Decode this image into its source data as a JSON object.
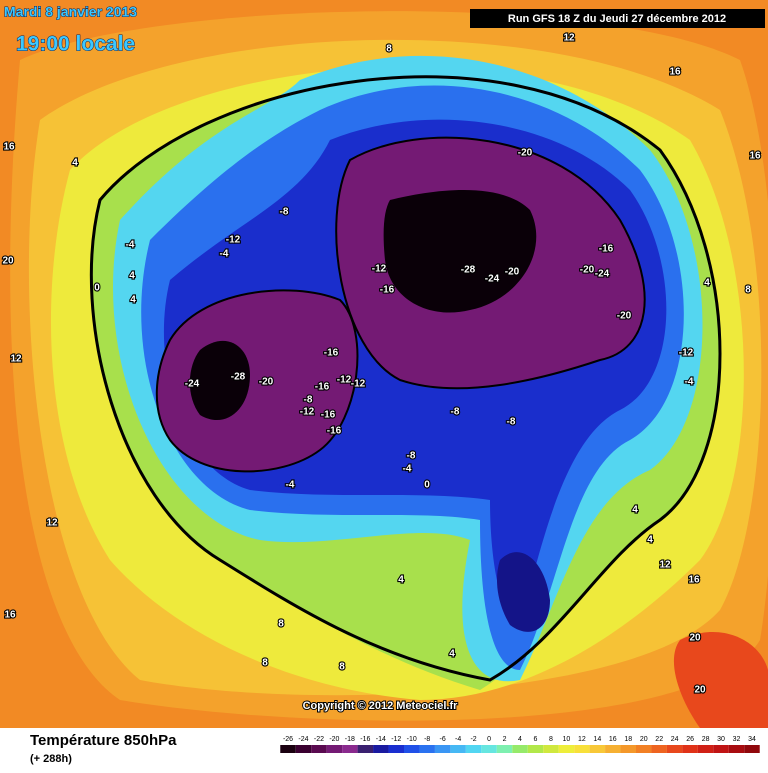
{
  "header": {
    "date": "Mardi 8 janvier 2013",
    "time": "19:00 locale",
    "run": "Run GFS 18 Z du Jeudi 27 décembre 2012"
  },
  "copyright": "Copyright © 2012 Meteociel.fr",
  "contour_labels": [
    -20,
    -16,
    -28,
    -24,
    -20,
    -20,
    -24,
    -20,
    -12,
    -16,
    -12,
    -4,
    -16,
    -24,
    -28,
    -20,
    -16,
    -12,
    -12,
    -8,
    -12,
    -16,
    -16,
    -8,
    -8,
    -8,
    -4,
    0,
    -4,
    -8,
    -12,
    -4,
    -4,
    0,
    4,
    4,
    4,
    16,
    20,
    12,
    12,
    16,
    8,
    8,
    8,
    4,
    4,
    8,
    12,
    16,
    16,
    4,
    8,
    4,
    4,
    12,
    16,
    20,
    20
  ],
  "legend": {
    "title": "Température 850hPa",
    "subtitle": "(+ 288h)",
    "ticks": [
      -26,
      -24,
      -22,
      -20,
      -18,
      -16,
      -14,
      -12,
      -10,
      -8,
      -6,
      -4,
      -2,
      0,
      2,
      4,
      6,
      8,
      10,
      12,
      14,
      16,
      18,
      20,
      22,
      24,
      26,
      28,
      30,
      32,
      34
    ],
    "colors": [
      "#1a0010",
      "#3a0030",
      "#5a0a50",
      "#741a74",
      "#8a2a8e",
      "#3a2070",
      "#1a1aa0",
      "#1a2ed0",
      "#2050e8",
      "#2a72f0",
      "#3a96f4",
      "#46b8f4",
      "#52d6f2",
      "#66e6e0",
      "#7ef0b0",
      "#96ea6a",
      "#b2e84a",
      "#d0e83e",
      "#eeee3a",
      "#f8e03a",
      "#f8c838",
      "#f6b032",
      "#f4982a",
      "#f28024",
      "#ee6420",
      "#e8481c",
      "#e03218",
      "#d02016",
      "#c01414",
      "#a80c10",
      "#90080c"
    ]
  }
}
